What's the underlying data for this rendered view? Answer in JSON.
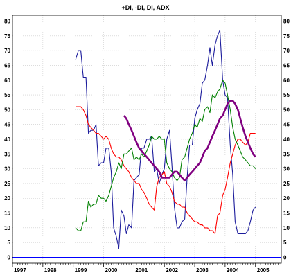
{
  "chart_data": {
    "type": "line",
    "title": "+DI, -DI, DI, ADX",
    "xlabel": "",
    "ylabel": "",
    "x_tick_labels": [
      "1997",
      "1998",
      "1999",
      "2000",
      "2001",
      "2002",
      "2003",
      "2004",
      "2005"
    ],
    "xlim": [
      1997,
      2005.85
    ],
    "ylim": [
      -2,
      82
    ],
    "y_ticks": [
      0,
      5,
      10,
      15,
      20,
      25,
      30,
      35,
      40,
      45,
      50,
      55,
      60,
      65,
      70,
      75,
      80
    ],
    "grid": true,
    "zero_line_color": "#0000ff",
    "series": [
      {
        "color": "#1c1c9c",
        "x": [
          1999.08,
          1999.17,
          1999.25,
          1999.33,
          1999.42,
          1999.5,
          1999.58,
          1999.67,
          1999.75,
          1999.83,
          1999.92,
          2000.0,
          2000.08,
          2000.17,
          2000.25,
          2000.33,
          2000.42,
          2000.5,
          2000.58,
          2000.67,
          2000.75,
          2000.83,
          2000.92,
          2001.0,
          2001.08,
          2001.17,
          2001.25,
          2001.33,
          2001.42,
          2001.5,
          2001.58,
          2001.67,
          2001.75,
          2001.83,
          2001.92,
          2002.0,
          2002.08,
          2002.17,
          2002.25,
          2002.33,
          2002.42,
          2002.5,
          2002.58,
          2002.67,
          2002.75,
          2002.83,
          2002.92,
          2003.0,
          2003.08,
          2003.17,
          2003.25,
          2003.33,
          2003.42,
          2003.5,
          2003.58,
          2003.67,
          2003.75,
          2003.83,
          2003.92,
          2004.0,
          2004.08,
          2004.17,
          2004.25,
          2004.33,
          2004.42,
          2004.5,
          2004.58,
          2004.67,
          2004.75,
          2004.83,
          2004.92,
          2005.0
        ],
        "values": [
          67,
          70,
          70,
          61,
          61,
          42,
          43,
          43,
          45,
          31,
          32,
          32,
          37,
          37,
          29,
          10,
          7,
          3,
          16,
          14,
          8,
          11,
          10,
          26,
          27,
          28,
          37,
          37,
          40,
          40,
          41,
          29,
          30,
          25,
          28,
          30,
          40,
          43,
          31,
          17,
          10,
          10,
          12,
          13,
          27,
          38,
          38,
          47,
          50,
          52,
          59,
          60,
          65,
          71,
          65,
          72,
          75,
          77,
          60,
          55,
          54,
          38,
          28,
          12,
          8,
          8,
          8,
          8,
          9,
          12,
          16,
          17
        ]
      },
      {
        "color": "#ff0000",
        "x": [
          1999.08,
          1999.17,
          1999.25,
          1999.33,
          1999.42,
          1999.5,
          1999.58,
          1999.67,
          1999.75,
          1999.83,
          1999.92,
          2000.0,
          2000.08,
          2000.17,
          2000.25,
          2000.33,
          2000.42,
          2000.5,
          2000.58,
          2000.67,
          2000.75,
          2000.83,
          2000.92,
          2001.0,
          2001.08,
          2001.17,
          2001.25,
          2001.33,
          2001.42,
          2001.5,
          2001.58,
          2001.67,
          2001.75,
          2001.83,
          2001.92,
          2002.0,
          2002.08,
          2002.17,
          2002.25,
          2002.33,
          2002.42,
          2002.5,
          2002.58,
          2002.67,
          2002.75,
          2002.83,
          2002.92,
          2003.0,
          2003.08,
          2003.17,
          2003.25,
          2003.33,
          2003.42,
          2003.5,
          2003.58,
          2003.67,
          2003.75,
          2003.83,
          2003.92,
          2004.0,
          2004.08,
          2004.17,
          2004.25,
          2004.33,
          2004.42,
          2004.5,
          2004.58,
          2004.67,
          2004.75,
          2004.83,
          2004.92,
          2005.0
        ],
        "values": [
          51,
          51,
          51,
          50,
          48,
          45,
          44,
          43,
          42,
          42,
          41,
          40,
          41,
          40,
          37,
          35,
          34,
          34,
          33,
          31,
          30,
          29,
          27,
          26,
          25,
          25,
          23,
          22,
          20,
          18,
          17,
          16,
          24,
          27,
          28,
          29,
          25,
          24,
          22,
          19,
          18,
          18,
          17,
          17,
          15,
          14,
          13,
          12,
          12,
          11,
          11,
          10,
          10,
          9,
          9,
          8,
          14,
          15,
          21,
          23,
          27,
          32,
          35,
          38,
          40,
          40,
          39,
          38,
          39,
          42,
          42,
          42
        ]
      },
      {
        "color": "#008000",
        "x": [
          1999.08,
          1999.17,
          1999.25,
          1999.33,
          1999.42,
          1999.5,
          1999.58,
          1999.67,
          1999.75,
          1999.83,
          1999.92,
          2000.0,
          2000.08,
          2000.17,
          2000.25,
          2000.33,
          2000.42,
          2000.5,
          2000.58,
          2000.67,
          2000.75,
          2000.83,
          2000.92,
          2001.0,
          2001.08,
          2001.17,
          2001.25,
          2001.33,
          2001.42,
          2001.5,
          2001.58,
          2001.67,
          2001.75,
          2001.83,
          2001.92,
          2002.0,
          2002.08,
          2002.17,
          2002.25,
          2002.33,
          2002.42,
          2002.5,
          2002.58,
          2002.67,
          2002.75,
          2002.83,
          2002.92,
          2003.0,
          2003.08,
          2003.17,
          2003.25,
          2003.33,
          2003.42,
          2003.5,
          2003.58,
          2003.67,
          2003.75,
          2003.83,
          2003.92,
          2004.0,
          2004.08,
          2004.17,
          2004.25,
          2004.33,
          2004.42,
          2004.5,
          2004.58,
          2004.67,
          2004.75,
          2004.83,
          2004.92,
          2005.0
        ],
        "values": [
          10,
          9,
          9,
          12,
          12,
          19,
          17,
          18,
          18,
          21,
          20,
          20,
          19,
          21,
          24,
          27,
          29,
          32,
          30,
          35,
          35,
          36,
          37,
          33,
          34,
          33,
          35,
          34,
          36,
          38,
          41,
          40,
          40,
          41,
          40,
          40,
          32,
          30,
          29,
          27,
          26,
          27,
          33,
          34,
          37,
          40,
          42,
          45,
          44,
          47,
          46,
          50,
          51,
          49,
          55,
          54,
          56,
          57,
          60,
          59,
          55,
          50,
          44,
          40,
          38,
          36,
          34,
          33,
          32,
          31,
          31,
          30
        ]
      },
      {
        "color": "#800080",
        "x": [
          2000.67,
          2000.75,
          2000.83,
          2000.92,
          2001.0,
          2001.08,
          2001.17,
          2001.25,
          2001.33,
          2001.42,
          2001.5,
          2001.58,
          2001.67,
          2001.75,
          2001.83,
          2001.92,
          2002.0,
          2002.08,
          2002.17,
          2002.25,
          2002.33,
          2002.42,
          2002.5,
          2002.58,
          2002.67,
          2002.75,
          2002.83,
          2002.92,
          2003.0,
          2003.08,
          2003.17,
          2003.25,
          2003.33,
          2003.42,
          2003.5,
          2003.58,
          2003.67,
          2003.75,
          2003.83,
          2003.92,
          2004.0,
          2004.08,
          2004.17,
          2004.25,
          2004.33,
          2004.42,
          2004.5,
          2004.58,
          2004.67,
          2004.75,
          2004.83,
          2004.92,
          2005.0
        ],
        "values": [
          48,
          47,
          45,
          43,
          41,
          39,
          37,
          36,
          35,
          34,
          33,
          32,
          31,
          30,
          29,
          27,
          27,
          27,
          27,
          28,
          29,
          29,
          28,
          27,
          26,
          27,
          28,
          29,
          30,
          31,
          32,
          34,
          36,
          37,
          39,
          41,
          43,
          45,
          47,
          48,
          50,
          52,
          53,
          53,
          52,
          50,
          47,
          44,
          41,
          39,
          37,
          35,
          34
        ]
      }
    ]
  }
}
